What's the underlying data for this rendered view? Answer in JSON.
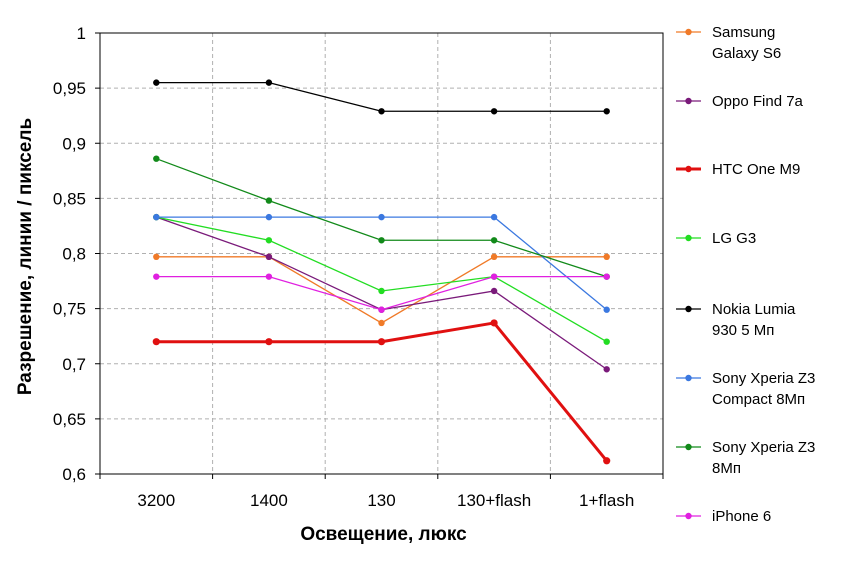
{
  "chart_data": {
    "type": "line",
    "title": "",
    "xlabel": "Освещение, люкс",
    "ylabel": "Разрешение, линии / пиксель",
    "categories": [
      "3200",
      "1400",
      "130",
      "130+flash",
      "1+flash"
    ],
    "ylim": [
      0.6,
      1.0
    ],
    "yticks": [
      "0,6",
      "0,65",
      "0,7",
      "0,75",
      "0,8",
      "0,85",
      "0,9",
      "0,95",
      "1"
    ],
    "grid": true,
    "legend_position": "right",
    "series": [
      {
        "name": "Samsung Galaxy S6",
        "legend_lines": [
          "Samsung",
          "Galaxy S6"
        ],
        "color": "#f07a28",
        "values": [
          0.797,
          0.797,
          0.737,
          0.797,
          0.797
        ]
      },
      {
        "name": "Oppo Find 7a",
        "legend_lines": [
          "Oppo Find 7a"
        ],
        "color": "#7a1a7a",
        "values": [
          0.833,
          0.797,
          0.749,
          0.766,
          0.695
        ]
      },
      {
        "name": "HTC One M9",
        "legend_lines": [
          "HTC One M9"
        ],
        "color": "#e01010",
        "values": [
          0.72,
          0.72,
          0.72,
          0.737,
          0.612
        ]
      },
      {
        "name": "LG G3",
        "legend_lines": [
          "LG G3"
        ],
        "color": "#22dd22",
        "values": [
          0.833,
          0.812,
          0.766,
          0.779,
          0.72
        ]
      },
      {
        "name": "Nokia Lumia 930 5 Мп",
        "legend_lines": [
          "Nokia Lumia",
          "930 5 Мп"
        ],
        "color": "#000000",
        "values": [
          0.955,
          0.955,
          0.929,
          0.929,
          0.929
        ]
      },
      {
        "name": "Sony Xperia Z3 Compact 8Мп",
        "legend_lines": [
          "Sony Xperia Z3",
          "Compact 8Мп"
        ],
        "color": "#3b78e0",
        "values": [
          0.833,
          0.833,
          0.833,
          0.833,
          0.749
        ]
      },
      {
        "name": "Sony Xperia Z3 8Мп",
        "legend_lines": [
          "Sony Xperia Z3",
          "8Мп"
        ],
        "color": "#128a1a",
        "values": [
          0.886,
          0.848,
          0.812,
          0.812,
          0.779
        ]
      },
      {
        "name": "iPhone 6",
        "legend_lines": [
          "iPhone 6"
        ],
        "color": "#e020e0",
        "values": [
          0.779,
          0.779,
          0.749,
          0.779,
          0.779
        ]
      }
    ]
  }
}
